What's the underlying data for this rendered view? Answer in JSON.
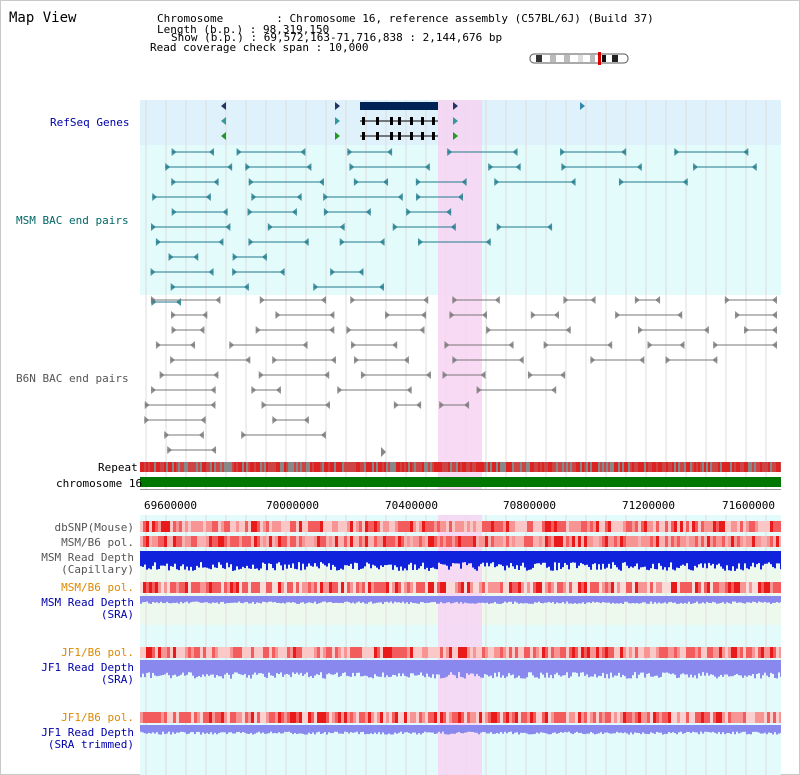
{
  "view_title": "Map View",
  "header": {
    "chromosome": "Chromosome        : Chromosome 16, reference assembly (C57BL/6J) (Build 37)",
    "length": "Length (b.p.) : 98,319,150",
    "show": "Show (b.p.) : 69,572,163-71,716,838 : 2,144,676 bp",
    "coverage": "Read coverage check span : 10,000"
  },
  "tracks": {
    "refseq": "RefSeq Genes",
    "msm_bac": "MSM BAC end pairs",
    "b6n_bac": "B6N BAC end pairs",
    "repeat": "Repeat",
    "chromosome": "chromosome 16",
    "dbsnp": "dbSNP(Mouse)",
    "msm_b6_pol_1": "MSM/B6 pol.",
    "msm_depth_cap_1": "MSM Read Depth",
    "msm_depth_cap_2": "(Capillary)",
    "msm_b6_pol_2": "MSM/B6 pol.",
    "msm_depth_sra_1": "MSM Read Depth",
    "msm_depth_sra_2": "(SRA)",
    "jf1_b6_pol_1": "JF1/B6 pol.",
    "jf1_depth_sra_1": "JF1 Read Depth",
    "jf1_depth_sra_2": "(SRA)",
    "jf1_b6_pol_2": "JF1/B6 pol.",
    "jf1_depth_trim_1": "JF1 Read Depth",
    "jf1_depth_trim_2": "(SRA trimmed)"
  },
  "axis_ticks": [
    "69600000",
    "70000000",
    "70400000",
    "70800000",
    "71200000",
    "71600000"
  ],
  "colors": {
    "refseq_bg": "#dff1fb",
    "msm_bg": "#e3fbfb",
    "b6n_bg": "#ffffff",
    "highlight": "#f7d3f2",
    "chromosome": "#007700",
    "label_blue": "#0000aa",
    "label_teal": "#006666",
    "label_orange": "#dd8800",
    "label_gray": "#555555",
    "depth_dark": "#1122dd",
    "depth_light": "#8888ee"
  }
}
